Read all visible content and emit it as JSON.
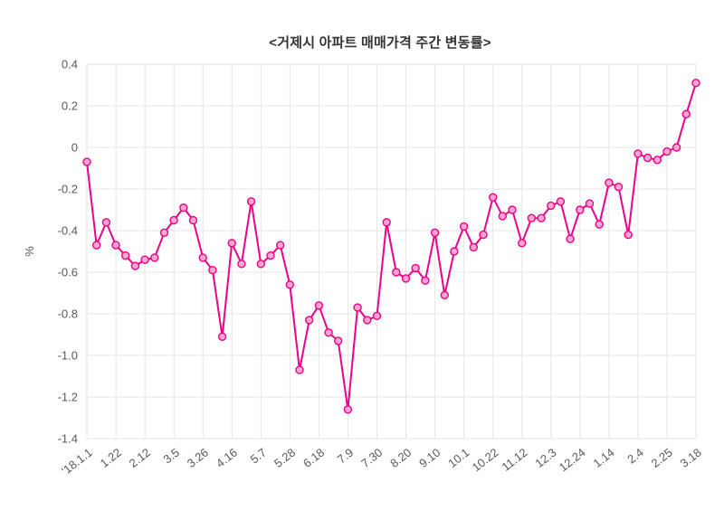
{
  "chart_data": {
    "type": "line",
    "title": "<거제시 아파트 매매가격 주간 변동률>",
    "xlabel": "",
    "ylabel": "%",
    "ylim": [
      -1.4,
      0.4
    ],
    "ytick_labels": [
      "0.4",
      "0.2",
      "0",
      "-0.2",
      "-0.4",
      "-0.6",
      "-0.8",
      "-1.0",
      "-1.2",
      "-1.4"
    ],
    "x_tick_labels": [
      "'18.1.1",
      "1.22",
      "2.12",
      "3.5",
      "3.26",
      "4.16",
      "5.7",
      "5.28",
      "6.18",
      "7.9",
      "7.30",
      "8.20",
      "9.10",
      "10.1",
      "10.22",
      "11.12",
      "12.3",
      "12.24",
      "1.14",
      "2.4",
      "2.25",
      "3.18"
    ],
    "x_tick_every": 3,
    "grid": true,
    "legend_position": "none",
    "values": [
      -0.07,
      -0.47,
      -0.36,
      -0.47,
      -0.52,
      -0.57,
      -0.54,
      -0.53,
      -0.41,
      -0.35,
      -0.29,
      -0.35,
      -0.53,
      -0.59,
      -0.91,
      -0.46,
      -0.56,
      -0.26,
      -0.56,
      -0.52,
      -0.47,
      -0.66,
      -1.07,
      -0.83,
      -0.76,
      -0.89,
      -0.93,
      -1.26,
      -0.77,
      -0.83,
      -0.81,
      -0.36,
      -0.6,
      -0.63,
      -0.58,
      -0.64,
      -0.41,
      -0.71,
      -0.5,
      -0.38,
      -0.48,
      -0.42,
      -0.24,
      -0.33,
      -0.3,
      -0.46,
      -0.34,
      -0.34,
      -0.28,
      -0.26,
      -0.44,
      -0.3,
      -0.27,
      -0.37,
      -0.17,
      -0.19,
      -0.42,
      -0.03,
      -0.05,
      -0.06,
      -0.02,
      0.0,
      0.16,
      0.31
    ],
    "colors": {
      "line": "#ec008c",
      "marker_fill": "#f7a6cd",
      "grid": "#e6e6e6",
      "tick_text": "#595959",
      "title_text": "#333333"
    }
  }
}
